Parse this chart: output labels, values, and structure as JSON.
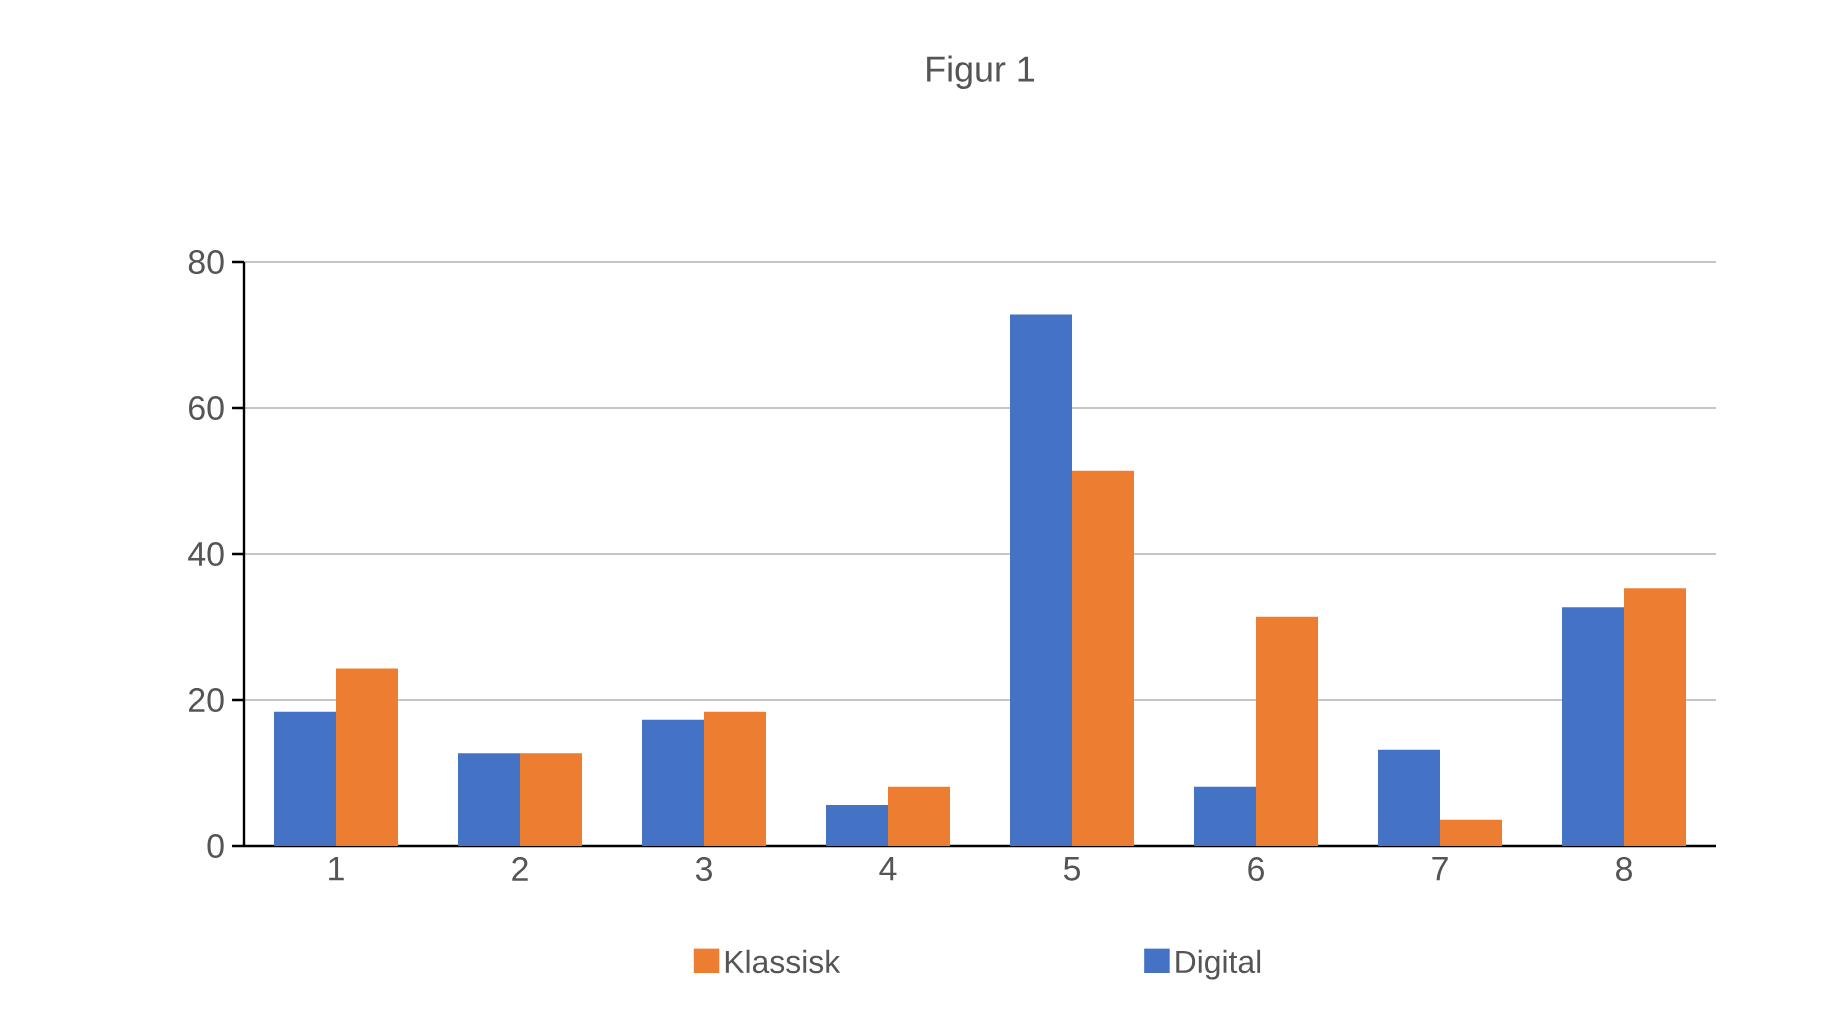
{
  "chart_data": {
    "type": "bar",
    "title": "Figur 1",
    "categories": [
      "1",
      "2",
      "3",
      "4",
      "5",
      "6",
      "7",
      "8"
    ],
    "series": [
      {
        "name": "Digital",
        "color": "#4472c4",
        "values": [
          18.4,
          12.7,
          17.3,
          5.6,
          72.8,
          8.1,
          13.2,
          32.7
        ]
      },
      {
        "name": "Klassisk",
        "color": "#ed7d31",
        "values": [
          24.3,
          12.7,
          18.4,
          8.1,
          51.4,
          31.4,
          3.6,
          35.3
        ]
      }
    ],
    "ylim": [
      0,
      80
    ],
    "yticks": [
      0,
      20,
      40,
      60,
      80
    ],
    "grid": "y",
    "legend": "bottom"
  }
}
